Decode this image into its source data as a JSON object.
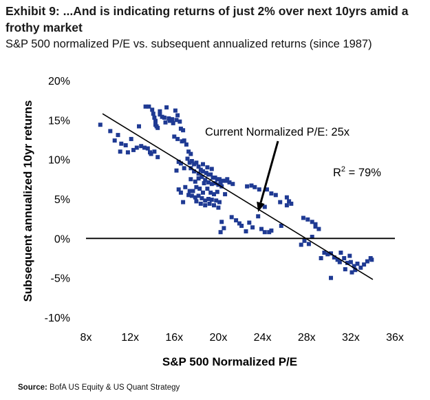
{
  "header": {
    "title": "Exhibit 9: ...And is indicating returns of just 2% over next 10yrs amid a frothy market",
    "subtitle": "S&P 500 normalized P/E vs. subsequent annualized returns (since 1987)"
  },
  "footer": {
    "source_label": "Source:",
    "source_text": "BofA US Equity & US Quant Strategy"
  },
  "chart_data": {
    "type": "scatter",
    "xlabel": "S&P 500 Normalized P/E",
    "ylabel": "Subsequent annualized 10yr returns",
    "xlim": [
      8,
      36
    ],
    "ylim": [
      -10,
      20
    ],
    "x_ticks": [
      8,
      12,
      16,
      20,
      24,
      28,
      32,
      36
    ],
    "x_tick_labels": [
      "8x",
      "12x",
      "16x",
      "20x",
      "24x",
      "28x",
      "32x",
      "36x"
    ],
    "y_ticks": [
      -10,
      -5,
      0,
      5,
      10,
      15,
      20
    ],
    "y_tick_labels": [
      "-10%",
      "-5%",
      "0%",
      "5%",
      "10%",
      "15%",
      "20%"
    ],
    "grid": false,
    "zero_line": true,
    "marker_color": "#1f3a93",
    "annotations": [
      {
        "text": "Current Normalized P/E: 25x",
        "arrow_to": [
          23.6,
          3.0
        ]
      },
      {
        "text": "R",
        "superscript": "2",
        "suffix": " = 79%"
      }
    ],
    "trendline": {
      "x": [
        9.5,
        34
      ],
      "y": [
        15.8,
        -5.2
      ]
    },
    "series": [
      {
        "points": [
          [
            9.3,
            14.4
          ],
          [
            10.2,
            13.6
          ],
          [
            10.6,
            12.4
          ],
          [
            10.9,
            13.1
          ],
          [
            11.2,
            12.0
          ],
          [
            11.6,
            11.8
          ],
          [
            11.8,
            10.9
          ],
          [
            12.3,
            11.2
          ],
          [
            11.1,
            11.0
          ],
          [
            12.1,
            12.6
          ],
          [
            12.6,
            11.5
          ],
          [
            13.0,
            11.7
          ],
          [
            13.3,
            11.5
          ],
          [
            13.6,
            11.4
          ],
          [
            13.8,
            10.9
          ],
          [
            13.9,
            10.7
          ],
          [
            14.2,
            11.0
          ],
          [
            14.5,
            10.3
          ],
          [
            12.8,
            14.2
          ],
          [
            13.4,
            16.7
          ],
          [
            13.7,
            16.7
          ],
          [
            14.0,
            16.3
          ],
          [
            14.1,
            15.8
          ],
          [
            14.2,
            15.3
          ],
          [
            14.3,
            14.9
          ],
          [
            14.3,
            14.4
          ],
          [
            14.4,
            14.2
          ],
          [
            14.5,
            14.0
          ],
          [
            14.7,
            15.7
          ],
          [
            14.7,
            16.1
          ],
          [
            14.9,
            15.4
          ],
          [
            15.1,
            15.3
          ],
          [
            15.2,
            14.7
          ],
          [
            15.3,
            16.6
          ],
          [
            15.5,
            15.2
          ],
          [
            15.6,
            14.9
          ],
          [
            15.8,
            15.1
          ],
          [
            15.9,
            14.6
          ],
          [
            16.1,
            16.2
          ],
          [
            16.2,
            15.0
          ],
          [
            16.3,
            15.6
          ],
          [
            16.5,
            14.8
          ],
          [
            16.6,
            13.9
          ],
          [
            16.8,
            13.7
          ],
          [
            16.0,
            12.9
          ],
          [
            16.3,
            12.6
          ],
          [
            16.7,
            12.3
          ],
          [
            16.9,
            12.4
          ],
          [
            17.1,
            11.9
          ],
          [
            17.3,
            11.0
          ],
          [
            17.5,
            10.7
          ],
          [
            17.2,
            10.1
          ],
          [
            17.4,
            9.6
          ],
          [
            17.6,
            9.8
          ],
          [
            17.8,
            9.4
          ],
          [
            18.0,
            9.6
          ],
          [
            18.2,
            9.1
          ],
          [
            18.4,
            8.7
          ],
          [
            18.6,
            8.5
          ],
          [
            18.9,
            8.3
          ],
          [
            19.1,
            8.1
          ],
          [
            19.3,
            8.1
          ],
          [
            19.5,
            7.7
          ],
          [
            19.7,
            7.7
          ],
          [
            19.9,
            7.5
          ],
          [
            20.1,
            7.5
          ],
          [
            20.4,
            7.3
          ],
          [
            20.7,
            7.3
          ],
          [
            21.0,
            7.1
          ],
          [
            21.3,
            6.9
          ],
          [
            17.0,
            6.5
          ],
          [
            17.4,
            6.0
          ],
          [
            17.7,
            6.0
          ],
          [
            18.0,
            6.5
          ],
          [
            18.3,
            6.3
          ],
          [
            18.6,
            5.8
          ],
          [
            19.0,
            6.3
          ],
          [
            19.3,
            5.8
          ],
          [
            19.6,
            5.6
          ],
          [
            19.9,
            5.9
          ],
          [
            17.5,
            7.5
          ],
          [
            17.9,
            7.2
          ],
          [
            18.2,
            7.6
          ],
          [
            18.5,
            7.8
          ],
          [
            18.8,
            7.4
          ],
          [
            19.1,
            7.1
          ],
          [
            19.4,
            6.9
          ],
          [
            19.7,
            7.0
          ],
          [
            20.0,
            6.8
          ],
          [
            20.3,
            6.6
          ],
          [
            17.3,
            5.5
          ],
          [
            17.6,
            5.4
          ],
          [
            17.9,
            5.2
          ],
          [
            18.2,
            5.4
          ],
          [
            18.5,
            5.1
          ],
          [
            18.8,
            4.8
          ],
          [
            19.1,
            5.0
          ],
          [
            19.4,
            4.9
          ],
          [
            19.8,
            4.8
          ],
          [
            20.1,
            4.6
          ],
          [
            18.0,
            4.7
          ],
          [
            18.4,
            4.4
          ],
          [
            18.8,
            4.2
          ],
          [
            19.2,
            4.4
          ],
          [
            19.6,
            4.2
          ],
          [
            20.0,
            3.9
          ],
          [
            18.6,
            9.4
          ],
          [
            19.0,
            9.0
          ],
          [
            19.4,
            8.8
          ],
          [
            18.2,
            8.2
          ],
          [
            17.8,
            8.5
          ],
          [
            17.5,
            8.9
          ],
          [
            16.9,
            8.9
          ],
          [
            16.4,
            9.7
          ],
          [
            16.6,
            9.5
          ],
          [
            18.7,
            7.0
          ],
          [
            20.2,
            7.0
          ],
          [
            20.6,
            5.6
          ],
          [
            20.8,
            7.5
          ],
          [
            16.8,
            4.6
          ],
          [
            16.6,
            5.8
          ],
          [
            16.4,
            6.2
          ],
          [
            16.2,
            8.6
          ],
          [
            20.5,
            1.3
          ],
          [
            20.3,
            2.1
          ],
          [
            20.2,
            0.8
          ],
          [
            21.2,
            2.7
          ],
          [
            21.6,
            2.3
          ],
          [
            21.9,
            1.9
          ],
          [
            22.1,
            1.6
          ],
          [
            22.5,
            0.9
          ],
          [
            22.8,
            2.0
          ],
          [
            23.1,
            1.4
          ],
          [
            23.6,
            2.8
          ],
          [
            23.9,
            1.2
          ],
          [
            24.2,
            0.8
          ],
          [
            24.6,
            0.8
          ],
          [
            24.8,
            1.0
          ],
          [
            25.7,
            1.6
          ],
          [
            22.6,
            6.6
          ],
          [
            23.0,
            6.7
          ],
          [
            23.3,
            6.5
          ],
          [
            23.7,
            6.2
          ],
          [
            24.4,
            6.2
          ],
          [
            24.8,
            5.7
          ],
          [
            25.2,
            5.5
          ],
          [
            25.6,
            4.6
          ],
          [
            26.2,
            4.2
          ],
          [
            26.4,
            4.7
          ],
          [
            26.6,
            4.4
          ],
          [
            26.2,
            5.2
          ],
          [
            24.2,
            4.0
          ],
          [
            27.7,
            2.6
          ],
          [
            28.1,
            2.4
          ],
          [
            28.5,
            2.1
          ],
          [
            28.8,
            1.8
          ],
          [
            27.5,
            -0.8
          ],
          [
            27.8,
            -0.3
          ],
          [
            28.2,
            -0.7
          ],
          [
            28.5,
            0.2
          ],
          [
            28.8,
            1.5
          ],
          [
            29.1,
            1.2
          ],
          [
            29.6,
            -1.8
          ],
          [
            29.9,
            -2.0
          ],
          [
            30.2,
            -1.9
          ],
          [
            30.5,
            -2.4
          ],
          [
            30.8,
            -2.7
          ],
          [
            31.1,
            -1.8
          ],
          [
            31.4,
            -2.5
          ],
          [
            31.7,
            -3.1
          ],
          [
            32.0,
            -3.0
          ],
          [
            32.3,
            -3.5
          ],
          [
            32.6,
            -3.2
          ],
          [
            32.9,
            -3.7
          ],
          [
            33.2,
            -3.3
          ],
          [
            33.5,
            -2.9
          ],
          [
            33.8,
            -2.5
          ],
          [
            33.9,
            -2.7
          ],
          [
            31.0,
            -3.0
          ],
          [
            31.5,
            -3.9
          ],
          [
            32.1,
            -4.3
          ],
          [
            32.4,
            -4.0
          ],
          [
            30.2,
            -5.0
          ],
          [
            29.3,
            -2.5
          ],
          [
            31.9,
            -2.2
          ]
        ]
      }
    ]
  }
}
